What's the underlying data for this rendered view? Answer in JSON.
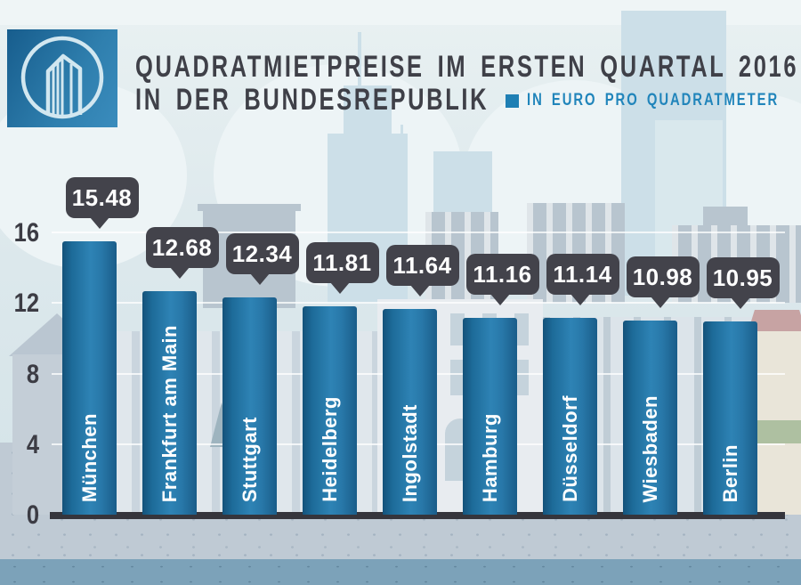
{
  "header": {
    "title_line1": "QUADRATMIETPREISE IM ERSTEN QUARTAL 2016",
    "title_line2": "IN DER BUNDESREPUBLIK",
    "legend_label": "IN EURO PRO QUADRATMETER",
    "logo_icon": "building-in-circle-icon"
  },
  "colors": {
    "accent_blue": "#1e7fb4",
    "legend_text_blue": "#2185bb",
    "title_text": "#3f4048",
    "bar_gradient_dark": "#14527a",
    "bar_gradient_light": "#2e83b5",
    "callout_bg": "#43434b",
    "axis_text": "#3c3c44",
    "baseline": "#35353c",
    "ground": "#bfcad4",
    "water": "#7ca2b9"
  },
  "chart_data": {
    "type": "bar",
    "title": "Quadratmietpreise im ersten Quartal 2016 in der Bundesrepublik",
    "unit_label": "in Euro pro Quadratmeter",
    "categories": [
      "München",
      "Frankfurt am Main",
      "Stuttgart",
      "Heidelberg",
      "Ingolstadt",
      "Hamburg",
      "Düsseldorf",
      "Wiesbaden",
      "Berlin"
    ],
    "values": [
      15.48,
      12.68,
      12.34,
      11.81,
      11.64,
      11.16,
      11.14,
      10.98,
      10.95
    ],
    "value_labels": [
      "15.48",
      "12.68",
      "12.34",
      "11.81",
      "11.64",
      "11.16",
      "11.14",
      "10.98",
      "10.95"
    ],
    "xlabel": "",
    "ylabel": "",
    "ylim": [
      0,
      16
    ],
    "yticks": [
      0,
      4,
      8,
      12,
      16
    ],
    "grid": true,
    "legend_position": "top-right"
  }
}
